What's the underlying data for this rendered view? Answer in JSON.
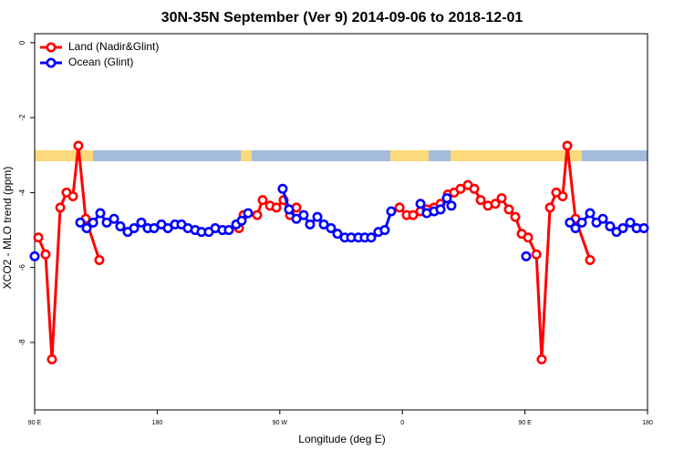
{
  "chart_data": {
    "type": "line",
    "title": "30N-35N September (Ver 9)   2014-09-06 to 2018-12-01",
    "x_label": "Longitude (deg E)",
    "y_label": "XCO2 - MLO trend (ppm)",
    "xlim": [
      90,
      540
    ],
    "ylim": [
      -9.8,
      0.24
    ],
    "xticks": [
      {
        "value": 90,
        "label": "90 E"
      },
      {
        "value": 180,
        "label": "180"
      },
      {
        "value": 270,
        "label": "90 W"
      },
      {
        "value": 360,
        "label": "0"
      },
      {
        "value": 450,
        "label": "90 E"
      },
      {
        "value": 540,
        "label": "180"
      }
    ],
    "yticks": [
      0,
      -2,
      -4,
      -6,
      -8
    ],
    "legend": "top-left",
    "series": [
      {
        "name": "Land (Nadir&Glint)",
        "color": "#ff0000",
        "x": [
          92.7,
          98,
          102.7,
          108.8,
          113.4,
          118.1,
          122.1,
          127.5,
          137.5,
          190,
          240,
          243.4,
          253.4,
          257.4,
          262.8,
          267.5,
          272.8,
          277.5,
          282.2,
          320,
          357.9,
          363.2,
          367.9,
          373.3,
          378,
          383.3,
          388,
          393.4,
          398,
          402.7,
          408.1,
          412.8,
          417.5,
          422.8,
          428.2,
          432.9,
          438.2,
          442.9,
          447.6,
          452.3,
          458.4,
          462.3,
          468.4,
          473,
          477.7,
          481.1,
          487.1,
          497.8
        ],
        "values": [
          -5.2,
          -5.65,
          -8.45,
          -4.4,
          -4.0,
          -4.1,
          -2.75,
          -4.7,
          -5.8,
          null,
          -4.95,
          -4.6,
          -4.6,
          -4.2,
          -4.35,
          -4.4,
          -4.2,
          -4.6,
          -4.4,
          null,
          -4.4,
          -4.6,
          -4.6,
          -4.5,
          -4.45,
          -4.4,
          -4.3,
          -4.05,
          -4.0,
          -3.9,
          -3.8,
          -3.9,
          -4.2,
          -4.35,
          -4.3,
          -4.15,
          -4.45,
          -4.65,
          -5.1,
          -5.2,
          -5.65,
          -8.45,
          -4.4,
          -4.0,
          -4.1,
          -2.75,
          -4.7,
          -5.8
        ]
      },
      {
        "name": "Ocean (Glint)",
        "color": "#0000ff",
        "x": [
          90,
          100,
          123.5,
          128.2,
          132.9,
          138.2,
          142.9,
          148.3,
          152.9,
          158.3,
          163,
          168.3,
          173,
          177.7,
          183.1,
          187.8,
          193.1,
          197.8,
          202.5,
          207.9,
          212.5,
          217.9,
          222.6,
          227.9,
          232.6,
          238,
          242,
          246.7,
          260,
          272.1,
          276.8,
          282.2,
          287.5,
          292.2,
          297.6,
          302.3,
          307.6,
          312.3,
          317.7,
          322.4,
          327.7,
          332.4,
          337.1,
          342.4,
          347.1,
          351.8,
          360,
          373.3,
          377.9,
          383.3,
          388,
          392.7,
          396,
          420,
          450.9,
          470,
          483,
          487.1,
          491.8,
          497.8,
          502.5,
          507.2,
          512.5,
          517.2,
          521.9,
          527.3,
          532,
          537.3
        ],
        "values": [
          -5.7,
          null,
          -4.8,
          -4.95,
          -4.8,
          -4.55,
          -4.8,
          -4.7,
          -4.9,
          -5.05,
          -4.95,
          -4.8,
          -4.95,
          -4.95,
          -4.85,
          -4.95,
          -4.85,
          -4.85,
          -4.95,
          -5.0,
          -5.05,
          -5.05,
          -4.95,
          -5.0,
          -5.0,
          -4.85,
          -4.75,
          -4.55,
          null,
          -3.9,
          -4.45,
          -4.7,
          -4.6,
          -4.85,
          -4.65,
          -4.85,
          -4.95,
          -5.1,
          -5.2,
          -5.2,
          -5.2,
          -5.2,
          -5.2,
          -5.05,
          -5.0,
          -4.5,
          null,
          -4.3,
          -4.55,
          -4.5,
          -4.45,
          -4.15,
          -4.35,
          null,
          -5.7,
          null,
          -4.8,
          -4.95,
          -4.8,
          -4.55,
          -4.8,
          -4.7,
          -4.9,
          -5.05,
          -4.95,
          -4.8,
          -4.95,
          -4.95
        ]
      }
    ]
  }
}
